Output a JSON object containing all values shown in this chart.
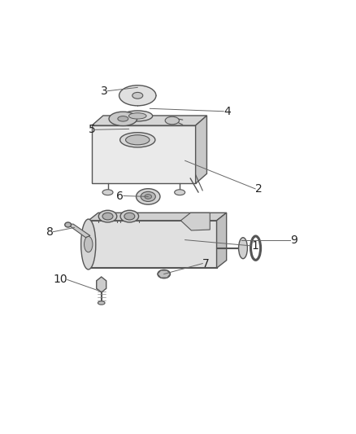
{
  "background_color": "#ffffff",
  "line_color": "#555555",
  "label_color": "#222222",
  "figsize": [
    4.38,
    5.33
  ],
  "dpi": 100,
  "label_fontsize": 10
}
